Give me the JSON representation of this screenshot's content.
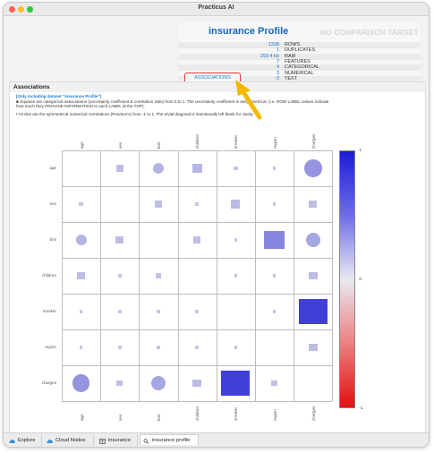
{
  "window": {
    "title": "Practicus AI"
  },
  "profile": {
    "title": "insurance Profile",
    "no_comparison": "NO COMPARISON TARGET",
    "stats": [
      {
        "value": "1338",
        "label": "ROWS"
      },
      {
        "value": "1",
        "label": "DUPLICATES"
      },
      {
        "value": "293.4 kb",
        "label": "RAM"
      },
      {
        "value": "7",
        "label": "FEATURES"
      },
      {
        "value": "4",
        "label": "CATEGORICAL"
      },
      {
        "value": "3",
        "label": "NUMERICAL"
      },
      {
        "value": "0",
        "label": "TEXT"
      }
    ],
    "associations_button": "ASSOCIATIONS",
    "highlight_color": "#e53935",
    "arrow_color": "#f5b800"
  },
  "associations": {
    "header": "Associations",
    "dataset_note": "[Only including dataset \"insurance Profile\"]",
    "desc_squares": "■ Squares are categorical associations (uncertainty coefficient & correlation ratio) from 0 to 1. The uncertainty coefficient is assymmetrical, (i.e. ROW LABEL values indicate how much they PROVIDE INFORMATION to each LABEL at the TOP).",
    "desc_circles": "• Circles are the symmetrical numerical correlations (Pearson's) from -1 to 1. The trivial diagonal is intentionally left blank for clarity.",
    "colorbar": {
      "max": "1",
      "mid": "0",
      "min": "-1",
      "top_color": "#1c1cd6",
      "bottom_color": "#e01111"
    }
  },
  "chart_data": {
    "type": "heatmap",
    "variables": [
      "age",
      "sex",
      "bmi",
      "children",
      "smoker",
      "region",
      "charges"
    ],
    "numerical": [
      "age",
      "bmi",
      "charges"
    ],
    "value_range": [
      -1,
      1
    ],
    "matrix": [
      [
        null,
        0.05,
        0.11,
        0.1,
        0.02,
        0.01,
        0.3
      ],
      [
        0.02,
        null,
        0.05,
        0.01,
        0.08,
        0.01,
        0.06
      ],
      [
        0.11,
        0.06,
        null,
        0.05,
        0.01,
        0.39,
        0.2
      ],
      [
        0.06,
        0.01,
        0.03,
        null,
        0.01,
        0.01,
        0.07
      ],
      [
        0.01,
        0.01,
        0.01,
        0.01,
        null,
        0.01,
        0.79
      ],
      [
        0.01,
        0.01,
        0.01,
        0.01,
        0.01,
        null,
        0.07
      ],
      [
        0.3,
        0.04,
        0.2,
        0.07,
        0.79,
        0.04,
        null
      ]
    ]
  },
  "tabs": [
    {
      "label": "Explore",
      "icon": "cloud-icon",
      "active": false
    },
    {
      "label": "Cloud Nodes",
      "icon": "cloud-icon",
      "active": false
    },
    {
      "label": "insurance",
      "icon": "table-icon",
      "active": false
    },
    {
      "label": "insurance profile",
      "icon": "magnifier-icon",
      "active": true
    }
  ]
}
